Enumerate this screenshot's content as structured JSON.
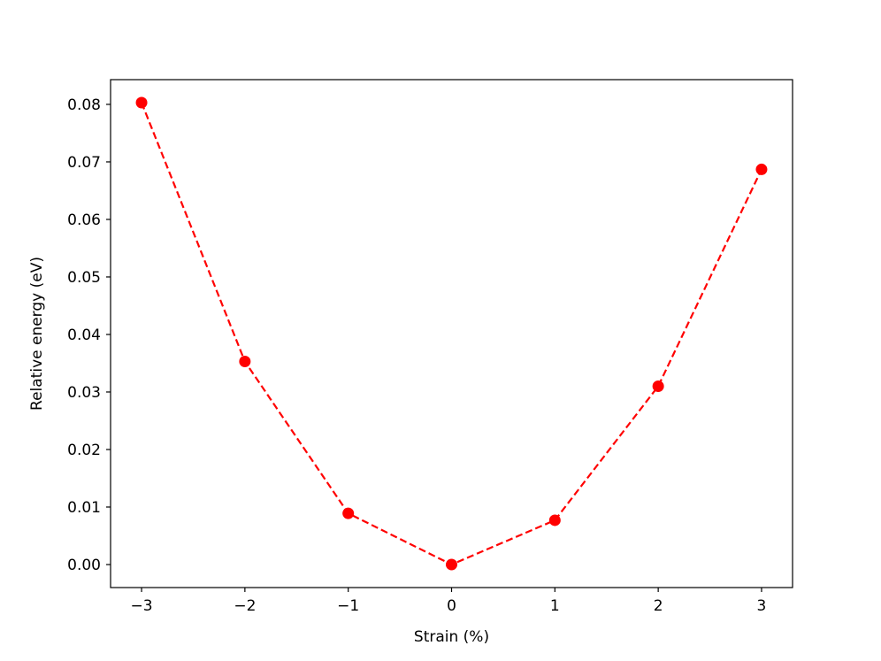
{
  "chart_data": {
    "type": "line",
    "title": "",
    "xlabel": "Strain (%)",
    "ylabel": "Relative energy (eV)",
    "x": [
      -3,
      -2,
      -1,
      0,
      1,
      2,
      3
    ],
    "series": [
      {
        "values": [
          0.0803,
          0.0353,
          0.0089,
          0.0,
          0.0077,
          0.031,
          0.0687
        ],
        "color": "#ff0000",
        "line_style": "dashed",
        "marker": "circle"
      }
    ],
    "xlim": [
      -3.3,
      3.3
    ],
    "ylim": [
      -0.004,
      0.0843
    ],
    "xticks": [
      -3,
      -2,
      -1,
      0,
      1,
      2,
      3
    ],
    "xtick_labels": [
      "−3",
      "−2",
      "−1",
      "0",
      "1",
      "2",
      "3"
    ],
    "yticks": [
      0.0,
      0.01,
      0.02,
      0.03,
      0.04,
      0.05,
      0.06,
      0.07,
      0.08
    ],
    "ytick_labels": [
      "0.00",
      "0.01",
      "0.02",
      "0.03",
      "0.04",
      "0.05",
      "0.06",
      "0.07",
      "0.08"
    ],
    "grid": false,
    "legend": "none"
  }
}
